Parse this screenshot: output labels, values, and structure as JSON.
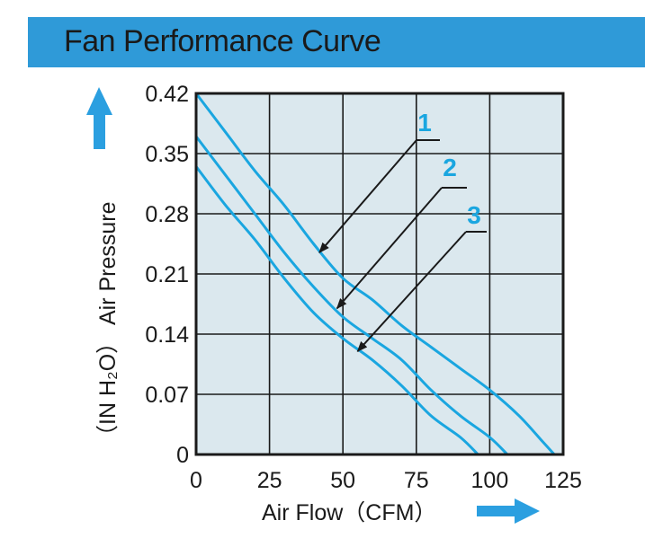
{
  "title": "Fan Performance Curve",
  "colors": {
    "banner": "#2f9ad8",
    "plot_bg": "#dbe8ee",
    "curve": "#1aa6e0",
    "arrow": "#2b9fe0",
    "frame": "#1a1a1a"
  },
  "chart_data": {
    "type": "line",
    "title": "Fan Performance Curve",
    "xlabel": "Air Flow（CFM）",
    "ylabel": "Air Pressure",
    "ylabel_unit": "（IN H₂O）",
    "xlim": [
      0,
      125
    ],
    "ylim": [
      0,
      0.42
    ],
    "xticks": [
      "0",
      "25",
      "50",
      "75",
      "100",
      "125"
    ],
    "yticks": [
      "0",
      "0.07",
      "0.14",
      "0.21",
      "0.28",
      "0.35",
      "0.42"
    ],
    "grid": true,
    "series": [
      {
        "name": "1",
        "x": [
          0,
          10,
          20,
          30,
          40,
          50,
          60,
          70,
          80,
          90,
          100,
          110,
          118,
          122
        ],
        "y": [
          0.42,
          0.375,
          0.33,
          0.29,
          0.245,
          0.205,
          0.18,
          0.15,
          0.125,
          0.1,
          0.075,
          0.045,
          0.015,
          0
        ]
      },
      {
        "name": "2",
        "x": [
          0,
          10,
          20,
          30,
          40,
          50,
          60,
          70,
          80,
          90,
          100,
          106
        ],
        "y": [
          0.37,
          0.325,
          0.28,
          0.235,
          0.195,
          0.16,
          0.135,
          0.11,
          0.075,
          0.045,
          0.02,
          0
        ]
      },
      {
        "name": "3",
        "x": [
          0,
          10,
          20,
          30,
          40,
          50,
          60,
          70,
          80,
          90,
          96
        ],
        "y": [
          0.335,
          0.29,
          0.25,
          0.205,
          0.165,
          0.135,
          0.11,
          0.08,
          0.045,
          0.02,
          0
        ]
      }
    ],
    "annotations": [
      {
        "label": "1",
        "points_to": [
          42,
          0.235
        ]
      },
      {
        "label": "2",
        "points_to": [
          48,
          0.17
        ]
      },
      {
        "label": "3",
        "points_to": [
          55,
          0.12
        ]
      }
    ]
  }
}
